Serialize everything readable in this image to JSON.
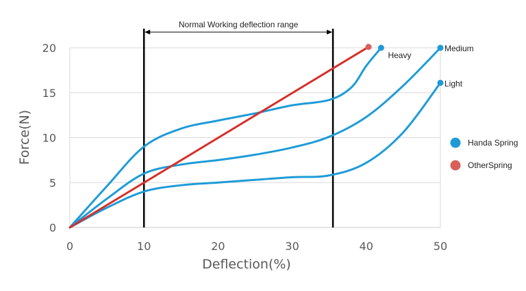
{
  "chart_data": {
    "type": "line",
    "title": "",
    "xlabel": "Deflection(%)",
    "ylabel": "Force(N)",
    "xlim": [
      0,
      50
    ],
    "ylim": [
      0,
      20
    ],
    "x_ticks": [
      "0",
      "10",
      "20",
      "30",
      "40",
      "50"
    ],
    "y_ticks": [
      "0",
      "5",
      "10",
      "15",
      "20"
    ],
    "grid": "horizontal",
    "legend_position": "right",
    "legend": [
      {
        "name": "Handa Spring",
        "color": "#1e9bd7"
      },
      {
        "name": "OtherSpring",
        "color": "#d9605a"
      }
    ],
    "range_annotation": {
      "label": "Normal Working deflection range",
      "start": 10,
      "end": 35.5
    },
    "series": [
      {
        "name": "Heavy",
        "label": "Heavy",
        "group": "Handa Spring",
        "color": "#1e9bd7",
        "points": [
          [
            0,
            0
          ],
          [
            5,
            4.6
          ],
          [
            10,
            9.0
          ],
          [
            15,
            11.0
          ],
          [
            20,
            11.9
          ],
          [
            25,
            12.7
          ],
          [
            30,
            13.6
          ],
          [
            35,
            14.2
          ],
          [
            38,
            15.6
          ],
          [
            40,
            18.0
          ],
          [
            42,
            20.0
          ]
        ]
      },
      {
        "name": "Medium",
        "label": "Medium",
        "group": "Handa Spring",
        "color": "#1e9bd7",
        "points": [
          [
            0,
            0
          ],
          [
            5,
            3.2
          ],
          [
            10,
            6.0
          ],
          [
            15,
            7.0
          ],
          [
            20,
            7.5
          ],
          [
            25,
            8.1
          ],
          [
            30,
            8.9
          ],
          [
            35,
            10.1
          ],
          [
            40,
            12.3
          ],
          [
            45,
            15.8
          ],
          [
            50,
            20.0
          ]
        ]
      },
      {
        "name": "Light",
        "label": "Light",
        "group": "Handa Spring",
        "color": "#1e9bd7",
        "points": [
          [
            0,
            0
          ],
          [
            5,
            2.2
          ],
          [
            10,
            4.0
          ],
          [
            15,
            4.7
          ],
          [
            20,
            5.0
          ],
          [
            25,
            5.3
          ],
          [
            30,
            5.6
          ],
          [
            35,
            5.8
          ],
          [
            40,
            7.2
          ],
          [
            45,
            10.6
          ],
          [
            50,
            16.1
          ]
        ]
      },
      {
        "name": "OtherSpring",
        "label": "",
        "group": "OtherSpring",
        "color": "#d62f2a",
        "marker_color": "#d9605a",
        "points": [
          [
            0,
            0
          ],
          [
            40.3,
            20.1
          ]
        ]
      }
    ]
  }
}
